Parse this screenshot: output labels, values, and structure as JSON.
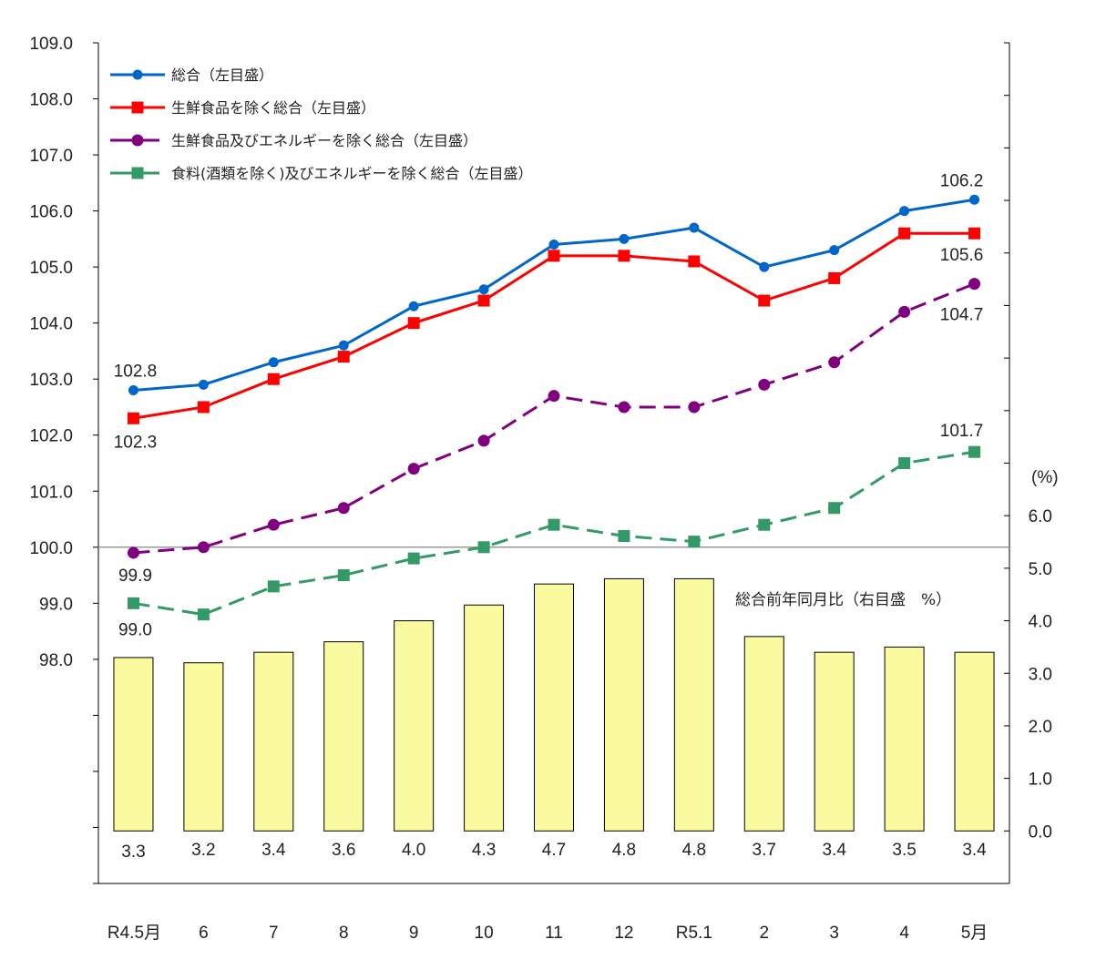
{
  "chart_data": {
    "type": "line+bar",
    "categories": [
      "R4.5月",
      "6",
      "7",
      "8",
      "9",
      "10",
      "11",
      "12",
      "R5.1",
      "2",
      "3",
      "4",
      "5月"
    ],
    "left_axis": {
      "range": [
        94.0,
        109.0
      ],
      "ticks": [
        "109.0",
        "108.0",
        "107.0",
        "106.0",
        "105.0",
        "104.0",
        "103.0",
        "102.0",
        "101.0",
        "100.0",
        "99.0",
        "98.0"
      ],
      "reference_line": 100.0
    },
    "right_axis": {
      "range": [
        -1.0,
        15.0
      ],
      "unit_label": "(%)",
      "ticks": [
        "6.0",
        "5.0",
        "4.0",
        "3.0",
        "2.0",
        "1.0",
        "0.0"
      ]
    },
    "series": [
      {
        "name": "総合（左目盛）",
        "kind": "line",
        "marker": "circle",
        "dash": false,
        "color": "#0066CC",
        "values": [
          102.8,
          102.9,
          103.3,
          103.6,
          104.3,
          104.6,
          105.4,
          105.5,
          105.7,
          105.0,
          105.3,
          106.0,
          106.2
        ]
      },
      {
        "name": "生鮮食品を除く総合（左目盛）",
        "kind": "line",
        "marker": "square",
        "dash": false,
        "color": "#FF0000",
        "values": [
          102.3,
          102.5,
          103.0,
          103.4,
          104.0,
          104.4,
          105.2,
          105.2,
          105.1,
          104.4,
          104.8,
          105.6,
          105.6
        ]
      },
      {
        "name": "生鮮食品及びエネルギーを除く総合（左目盛）",
        "kind": "line",
        "marker": "circle",
        "dash": true,
        "color": "#800080",
        "values": [
          99.9,
          100.0,
          100.4,
          100.7,
          101.4,
          101.9,
          102.7,
          102.5,
          102.5,
          102.9,
          103.3,
          104.2,
          104.7
        ]
      },
      {
        "name": "食料(酒類を除く)及びエネルギーを除く総合（左目盛）",
        "kind": "line",
        "marker": "square",
        "dash": true,
        "color": "#339966",
        "values": [
          99.0,
          98.8,
          99.3,
          99.5,
          99.8,
          100.0,
          100.4,
          100.2,
          100.1,
          100.4,
          100.7,
          101.5,
          101.7
        ]
      },
      {
        "name": "総合前年同月比（右目盛　%）",
        "kind": "bar",
        "axis": "right",
        "color": "#FAFA9E",
        "values": [
          3.3,
          3.2,
          3.4,
          3.6,
          4.0,
          4.3,
          4.7,
          4.8,
          4.8,
          3.7,
          3.4,
          3.5,
          3.4
        ],
        "labels": [
          "3.3",
          "3.2",
          "3.4",
          "3.6",
          "4.0",
          "4.3",
          "4.7",
          "4.8",
          "4.8",
          "3.7",
          "3.4",
          "3.5",
          "3.4"
        ]
      }
    ],
    "annotations": [
      {
        "text": "102.8",
        "series": 0,
        "index": 0
      },
      {
        "text": "102.3",
        "series": 1,
        "index": 0
      },
      {
        "text": "99.9",
        "series": 2,
        "index": 0
      },
      {
        "text": "99.0",
        "series": 3,
        "index": 0
      },
      {
        "text": "106.2",
        "series": 0,
        "index": 12
      },
      {
        "text": "105.6",
        "series": 1,
        "index": 12
      },
      {
        "text": "104.7",
        "series": 2,
        "index": 12
      },
      {
        "text": "101.7",
        "series": 3,
        "index": 12
      }
    ],
    "legend_position": "top-left",
    "grid": false
  }
}
